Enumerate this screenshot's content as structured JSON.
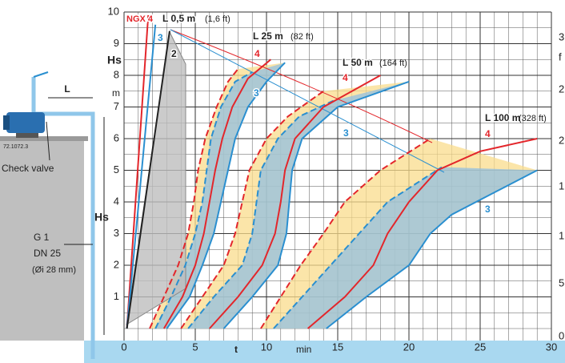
{
  "chart_data": {
    "type": "line",
    "xlabel": "t",
    "xunit": "min",
    "ylabel": "Hs",
    "yunit": "m",
    "xlim": [
      0,
      30
    ],
    "ylim": [
      0,
      10
    ],
    "xticks": [
      0,
      5,
      10,
      15,
      20,
      25,
      30
    ],
    "yticks": [
      1,
      2,
      3,
      4,
      5,
      6,
      7,
      8,
      9,
      10
    ],
    "grid": true,
    "right_axis_labels": [
      "3",
      "f",
      "2",
      "2",
      "1",
      "1",
      "5",
      "0"
    ],
    "series": [
      {
        "color": "#e3262b",
        "dash": false,
        "x": [
          0.2,
          1.7
        ],
        "values": [
          0,
          9.9
        ]
      },
      {
        "color": "#2a8fd0",
        "dash": false,
        "x": [
          0.2,
          2.2
        ],
        "values": [
          0,
          9.6
        ]
      },
      {
        "color": "#222222",
        "dash": false,
        "x": [
          0.2,
          3.2
        ],
        "values": [
          0,
          9.4
        ]
      },
      {
        "color": "#e3262b",
        "dash": true,
        "x": [
          1.8,
          2.8,
          3.8,
          4.5,
          4.9,
          5.2,
          5.7,
          6.5,
          7.3,
          8
        ],
        "values": [
          0,
          1,
          2,
          3,
          4,
          5,
          6,
          7,
          7.8,
          8.2
        ]
      },
      {
        "color": "#2a8fd0",
        "dash": true,
        "x": [
          2.2,
          3.3,
          4.3,
          5,
          5.5,
          5.8,
          6.1,
          6.8,
          7.8,
          9
        ],
        "values": [
          0,
          1,
          2,
          3,
          4,
          5,
          6,
          7,
          7.8,
          8.1
        ]
      },
      {
        "color": "#e3262b",
        "dash": false,
        "x": [
          2.8,
          4.1,
          5,
          5.6,
          6,
          6.4,
          6.9,
          7.6,
          8.7,
          10.3
        ],
        "values": [
          0,
          1,
          2,
          3,
          4,
          5,
          6,
          7,
          7.9,
          8.5
        ]
      },
      {
        "color": "#2a8fd0",
        "dash": false,
        "x": [
          3,
          4.6,
          5.5,
          6.3,
          6.8,
          7.3,
          7.8,
          8.7,
          10,
          11.3
        ],
        "values": [
          0,
          1,
          2,
          3,
          4,
          5,
          6,
          7,
          7.8,
          8.4
        ]
      },
      {
        "color": "#e3262b",
        "dash": true,
        "x": [
          4,
          5.5,
          7,
          7.8,
          8.3,
          8.8,
          10,
          11.5,
          14
        ],
        "values": [
          0,
          1,
          2,
          3,
          4,
          5,
          6,
          6.7,
          7.5
        ]
      },
      {
        "color": "#2a8fd0",
        "dash": true,
        "x": [
          4.5,
          6.3,
          8.3,
          9,
          9.3,
          9.6,
          10.8,
          12.3,
          14.7
        ],
        "values": [
          0,
          1,
          2,
          3,
          4,
          5,
          6,
          6.7,
          7.2
        ]
      },
      {
        "color": "#e3262b",
        "dash": false,
        "x": [
          6,
          8,
          9.7,
          10.6,
          11,
          11.3,
          12,
          14,
          18
        ],
        "values": [
          0,
          1,
          2,
          3,
          4,
          5,
          6,
          7,
          8
        ]
      },
      {
        "color": "#2a8fd0",
        "dash": false,
        "x": [
          7,
          9,
          10.8,
          11.4,
          11.6,
          11.8,
          12.5,
          15,
          20
        ],
        "values": [
          0,
          1,
          2,
          3,
          4,
          5,
          6,
          7,
          7.8
        ]
      },
      {
        "color": "#e3262b",
        "dash": true,
        "x": [
          9.6,
          11,
          12.4,
          14,
          15.5,
          18,
          21.5
        ],
        "values": [
          0,
          1,
          2,
          3,
          4,
          5,
          6
        ]
      },
      {
        "color": "#2a8fd0",
        "dash": true,
        "x": [
          10.5,
          12.5,
          14.5,
          16.5,
          18.5,
          22.3
        ],
        "values": [
          0,
          1,
          2,
          3,
          4,
          5.1
        ]
      },
      {
        "color": "#e3262b",
        "dash": false,
        "x": [
          12.9,
          15.5,
          17.5,
          18.5,
          20,
          22,
          25,
          29
        ],
        "values": [
          0,
          1,
          2,
          3,
          4,
          5,
          5.6,
          6
        ]
      },
      {
        "color": "#2a8fd0",
        "dash": false,
        "x": [
          14.2,
          17,
          20,
          21.5,
          23,
          26,
          29
        ],
        "values": [
          0,
          1,
          2,
          3,
          3.6,
          4.3,
          5
        ]
      }
    ],
    "annotations": [
      "NGX 4",
      "L 0,5 m",
      "(1,6 ft)",
      "3",
      "2",
      "L 25 m",
      "(82 ft)",
      "4",
      "3",
      "L 50 m",
      "(164 ft)",
      "4",
      "3",
      "L 100 m",
      "(328 ft)",
      "4",
      "3"
    ]
  },
  "diagram": {
    "code": "72.1072.3",
    "check_valve": "Check valve",
    "length": "L",
    "height": "Hs",
    "thread": "G 1",
    "nominal": "DN 25",
    "inner": "(Øi 28 mm)"
  }
}
